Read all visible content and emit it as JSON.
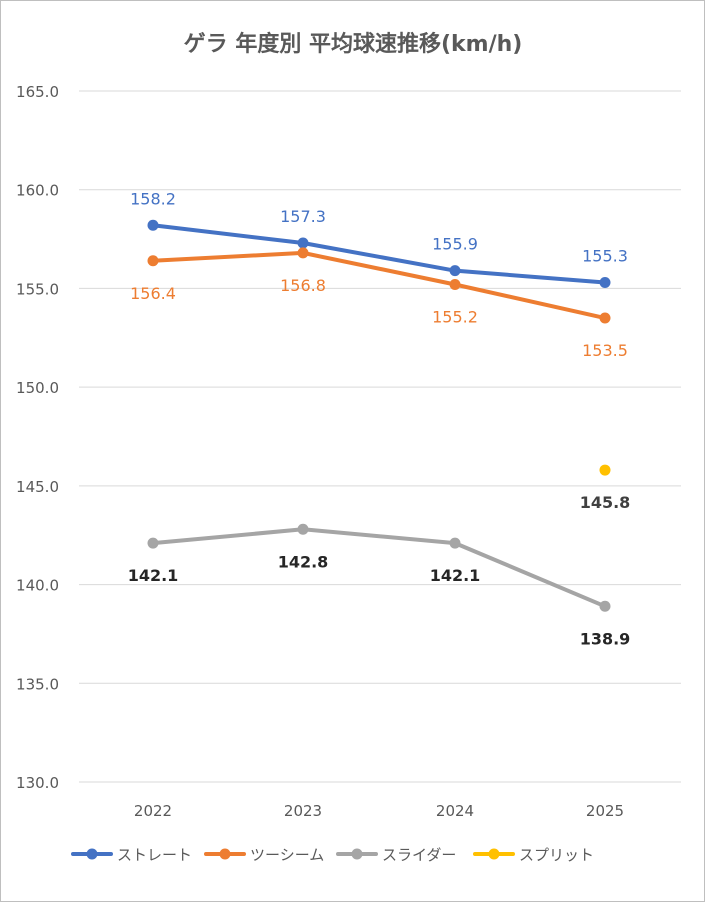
{
  "chart_data": {
    "type": "line",
    "title": "ゲラ 年度別 平均球速推移(km/h)",
    "categories": [
      "2022",
      "2023",
      "2024",
      "2025"
    ],
    "ylim": [
      130,
      165
    ],
    "yticks": [
      "130.0",
      "135.0",
      "140.0",
      "145.0",
      "150.0",
      "155.0",
      "160.0",
      "165.0"
    ],
    "grid": true,
    "legend_position": "bottom",
    "series": [
      {
        "name": "ストレート",
        "color": "#4472C4",
        "label_color": "#4472C4",
        "label_side": "above",
        "values": [
          158.2,
          157.3,
          155.9,
          155.3
        ],
        "labels": [
          "158.2",
          "157.3",
          "155.9",
          "155.3"
        ]
      },
      {
        "name": "ツーシーム",
        "color": "#ED7D31",
        "label_color": "#ED7D31",
        "label_side": "below",
        "values": [
          156.4,
          156.8,
          155.2,
          153.5
        ],
        "labels": [
          "156.4",
          "156.8",
          "155.2",
          "153.5"
        ]
      },
      {
        "name": "スライダー",
        "color": "#A5A5A5",
        "label_color": "#262626",
        "label_side": "below",
        "values": [
          142.1,
          142.8,
          142.1,
          138.9
        ],
        "labels": [
          "142.1",
          "142.8",
          "142.1",
          "138.9"
        ]
      },
      {
        "name": "スプリット",
        "color": "#FFC000",
        "label_color": "#404040",
        "label_side": "below",
        "values": [
          null,
          null,
          null,
          145.8
        ],
        "labels": [
          null,
          null,
          null,
          "145.8"
        ]
      }
    ]
  }
}
